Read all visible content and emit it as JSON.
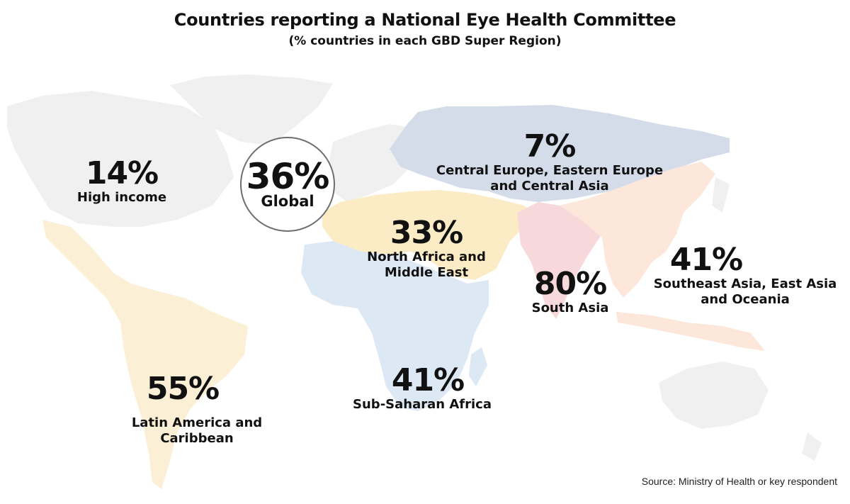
{
  "title": "Countries reporting a National Eye Health Committee",
  "subtitle": "(% countries in each GBD Super Region)",
  "source": "Source: Ministry of Health or key respondent",
  "global": {
    "value": "36%",
    "label": "Global"
  },
  "regions": {
    "high_income": {
      "value": "14%",
      "label_lines": [
        "High income"
      ],
      "color": "#f0f0f0"
    },
    "central_europe": {
      "value": "7%",
      "label_lines": [
        "Central Europe, Eastern Europe",
        "and Central Asia"
      ],
      "color": "#d4dcea"
    },
    "north_africa": {
      "value": "33%",
      "label_lines": [
        "North Africa and",
        "Middle East"
      ],
      "color": "#fbecc6"
    },
    "south_asia": {
      "value": "80%",
      "label_lines": [
        "South Asia"
      ],
      "color": "#f7d9dc"
    },
    "southeast_asia": {
      "value": "41%",
      "label_lines": [
        "Southeast Asia, East Asia",
        "and Oceania"
      ],
      "color": "#fde6da"
    },
    "sub_saharan": {
      "value": "41%",
      "label_lines": [
        "Sub-Saharan Africa"
      ],
      "color": "#dce8f4"
    },
    "latin_america": {
      "value": "55%",
      "label_lines": [
        "Latin America and",
        "Caribbean"
      ],
      "color": "#fbf0d6"
    }
  }
}
